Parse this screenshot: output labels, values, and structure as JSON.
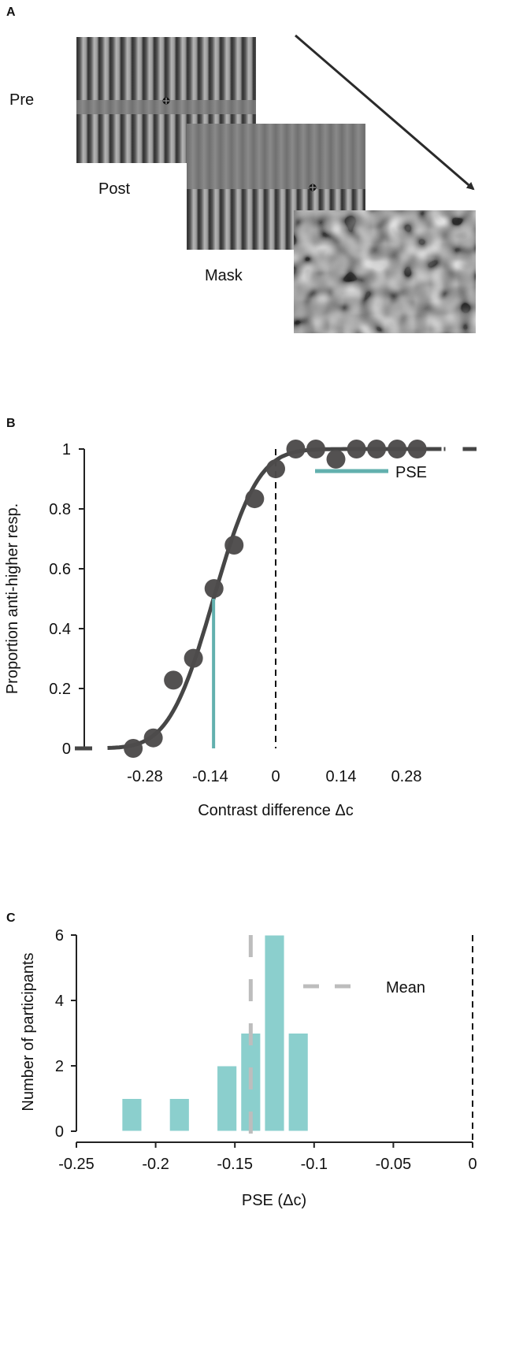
{
  "panel_a": {
    "letter": "A",
    "labels": {
      "pre": "Pre",
      "post": "Post",
      "mask": "Mask"
    }
  },
  "colors": {
    "marker": "#4d4b4b",
    "fit": "#464646",
    "pse": "#62b0ae",
    "bars": "#8bcfcd",
    "mean": "#bdbdbd"
  },
  "chart_data": [
    {
      "panel": "B",
      "type": "scatter",
      "title": "",
      "xlabel": "Contrast difference Δc",
      "ylabel": "Proportion anti-higher resp.",
      "xlim": [
        -0.43,
        0.43
      ],
      "ylim": [
        0,
        1
      ],
      "xticks": [
        -0.28,
        -0.14,
        0,
        0.14,
        0.28
      ],
      "xtick_labels": [
        "-0.28",
        "-0.14",
        "0",
        "0.14",
        "0.28"
      ],
      "yticks": [
        0,
        0.2,
        0.4,
        0.6,
        0.8,
        1
      ],
      "ytick_labels": [
        "0",
        "0.2",
        "0.4",
        "0.6",
        "0.8",
        "1"
      ],
      "points": {
        "x": [
          -0.305,
          -0.262,
          -0.219,
          -0.176,
          -0.132,
          -0.089,
          -0.045,
          0.0,
          0.043,
          0.086,
          0.129,
          0.173,
          0.216,
          0.26,
          0.303
        ],
        "y": [
          0.0,
          0.035,
          0.228,
          0.301,
          0.534,
          0.679,
          0.834,
          0.934,
          1.0,
          1.0,
          0.966,
          1.0,
          1.0,
          1.0,
          1.0
        ]
      },
      "fit": {
        "type": "cumulative-gaussian",
        "mu": -0.133,
        "sigma": 0.075
      },
      "pse": -0.133,
      "reference_line_x": 0,
      "legend": {
        "entries": [
          "PSE"
        ],
        "placement": "top-right"
      },
      "grid": false
    },
    {
      "panel": "C",
      "type": "bar",
      "title": "",
      "xlabel": "PSE (Δc)",
      "ylabel": "Number of participants",
      "xlim": [
        -0.25,
        0
      ],
      "ylim": [
        0,
        6
      ],
      "xticks": [
        -0.25,
        -0.2,
        -0.15,
        -0.1,
        -0.05,
        0
      ],
      "xtick_labels": [
        "-0.25",
        "-0.2",
        "-0.15",
        "-0.1",
        "-0.05",
        "0"
      ],
      "yticks": [
        0,
        2,
        4,
        6
      ],
      "ytick_labels": [
        "0",
        "2",
        "4",
        "6"
      ],
      "bin_width": 0.0125,
      "bins": [
        -0.215,
        -0.185,
        -0.155,
        -0.14,
        -0.125,
        -0.11
      ],
      "values": [
        1,
        1,
        2,
        3,
        6,
        3
      ],
      "mean": -0.14,
      "reference_line_x": 0,
      "legend": {
        "entries": [
          "Mean"
        ],
        "placement": "top-right"
      },
      "grid": false
    }
  ]
}
